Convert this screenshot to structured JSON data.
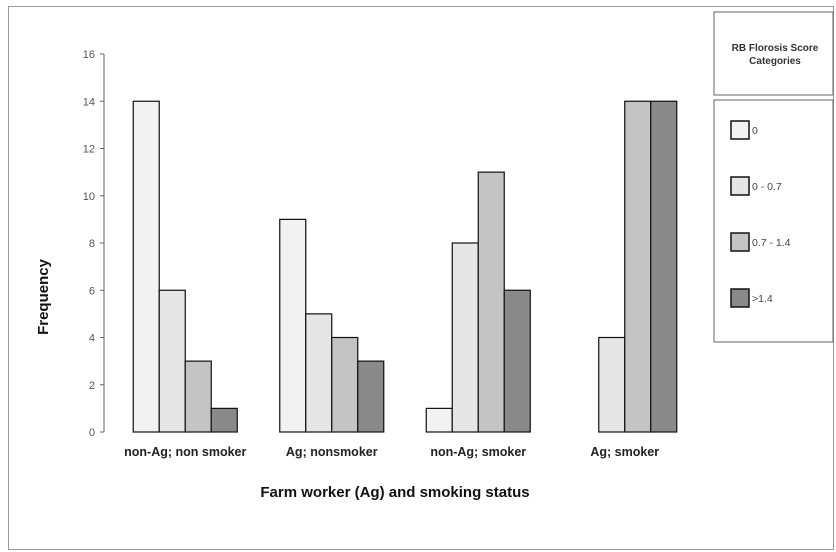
{
  "chart_data": {
    "type": "bar",
    "title": "",
    "xlabel": "Farm worker (Ag) and smoking status",
    "ylabel": "Frequency",
    "ylim": [
      0,
      16
    ],
    "yticks": [
      0,
      2,
      4,
      6,
      8,
      10,
      12,
      14,
      16
    ],
    "grid": false,
    "categories": [
      "non-Ag; non smoker",
      "Ag; nonsmoker",
      "non-Ag; smoker",
      "Ag; smoker"
    ],
    "legend": {
      "title_lines": [
        "RB Florosis Score",
        "Categories"
      ],
      "placement": "right"
    },
    "series": [
      {
        "name": "0",
        "values": [
          14,
          9,
          1,
          0
        ],
        "color": "#f2f2f2"
      },
      {
        "name": "0 - 0.7",
        "values": [
          6,
          5,
          8,
          4
        ],
        "color": "#e6e6e6"
      },
      {
        "name": "0.7 - 1.4",
        "values": [
          3,
          4,
          11,
          14
        ],
        "color": "#c4c4c4"
      },
      {
        "name": ">1.4",
        "values": [
          1,
          3,
          6,
          14
        ],
        "color": "#8a8a8a"
      }
    ]
  }
}
